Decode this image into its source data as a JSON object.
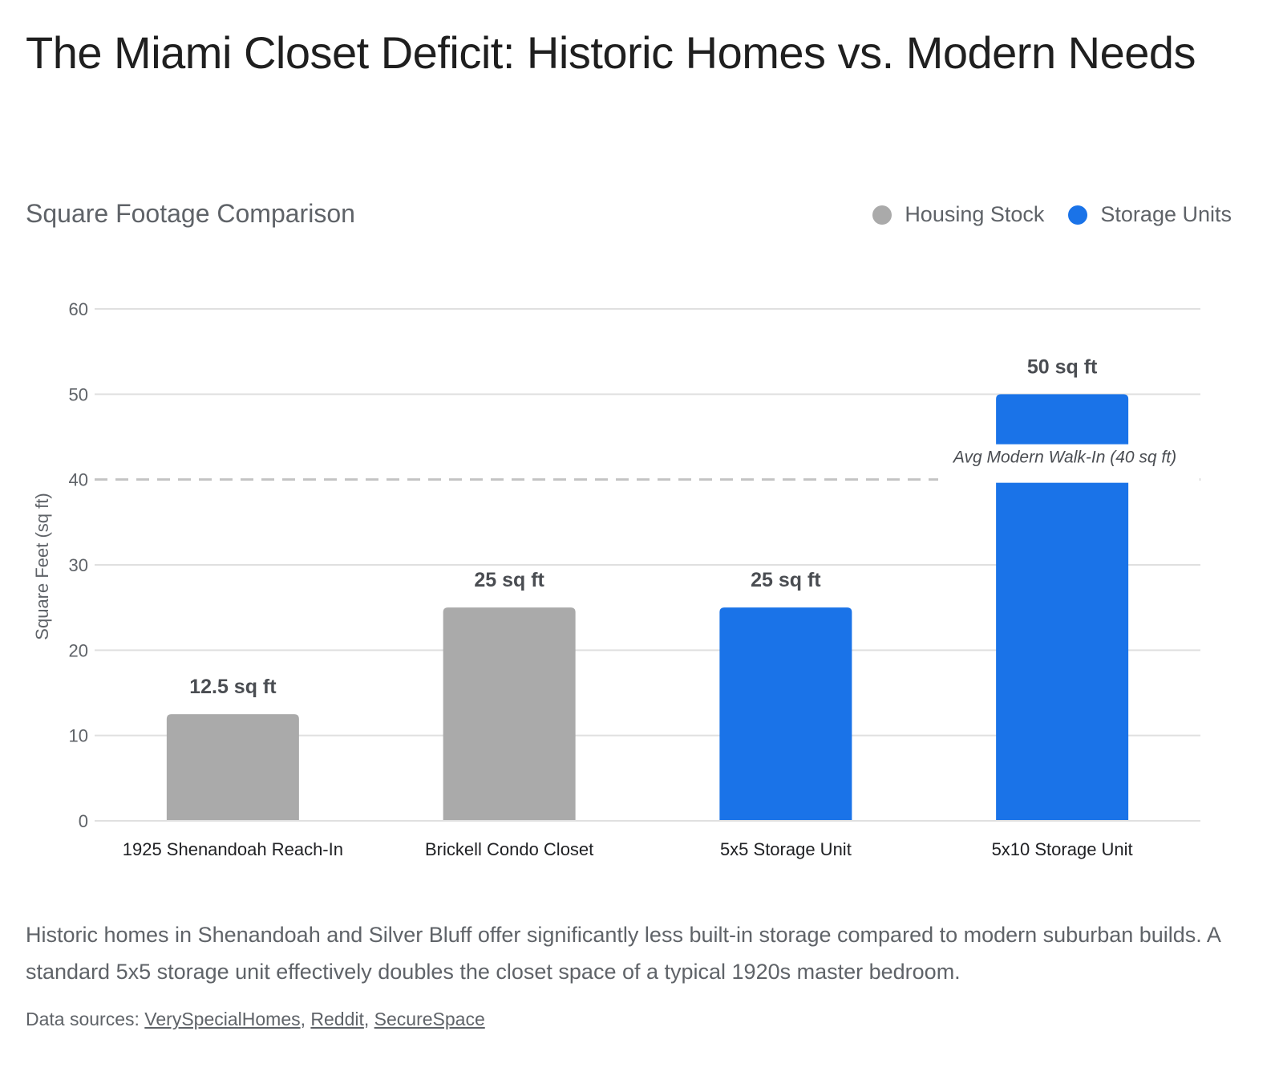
{
  "header": {
    "title": "The Miami Closet Deficit: Historic Homes vs. Modern Needs",
    "subtitle": "Square Footage Comparison"
  },
  "legend": [
    {
      "label": "Housing Stock",
      "color": "#aaaaaa"
    },
    {
      "label": "Storage Units",
      "color": "#1a73e8"
    }
  ],
  "chart_data": {
    "type": "bar",
    "title": "Square Footage Comparison",
    "xlabel": "",
    "ylabel": "Square Feet (sq ft)",
    "ylim": [
      0,
      60
    ],
    "yticks": [
      0,
      10,
      20,
      30,
      40,
      50,
      60
    ],
    "grid": true,
    "legend_position": "top-right",
    "categories": [
      "1925 Shenandoah Reach-In",
      "Brickell Condo Closet",
      "5x5 Storage Unit",
      "5x10 Storage Unit"
    ],
    "values": [
      12.5,
      25,
      25,
      50
    ],
    "data_labels": [
      "12.5 sq ft",
      "25 sq ft",
      "25 sq ft",
      "50 sq ft"
    ],
    "series_membership": [
      "Housing Stock",
      "Housing Stock",
      "Storage Units",
      "Storage Units"
    ],
    "colors": {
      "Housing Stock": "#aaaaaa",
      "Storage Units": "#1a73e8"
    },
    "reference_line": {
      "value": 40,
      "label": "Avg Modern Walk-In (40 sq ft)",
      "style": "dashed",
      "color": "#c4c4c4"
    }
  },
  "footer": {
    "description": "Historic homes in Shenandoah and Silver Bluff offer significantly less built-in storage compared to modern suburban builds. A standard 5x5 storage unit effectively doubles the closet space of a typical 1920s master bedroom.",
    "sources_prefix": "Data sources: ",
    "sources": [
      "VerySpecialHomes",
      "Reddit",
      "SecureSpace"
    ]
  }
}
